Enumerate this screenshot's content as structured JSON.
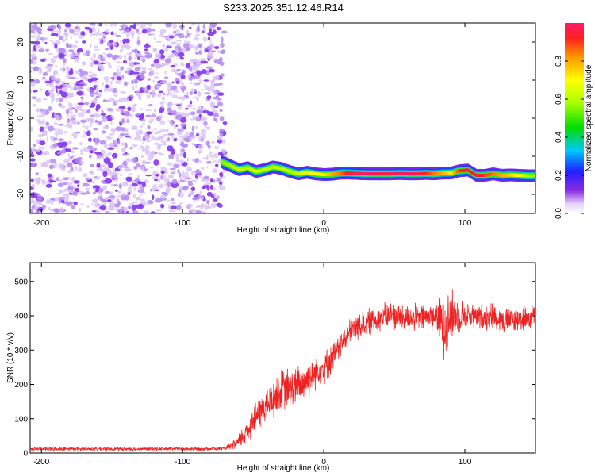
{
  "title": "S233.2025.351.12.46.R14",
  "colors": {
    "snr_line": "#ee2222",
    "axis": "#000000",
    "noise": "#8a3cf0"
  },
  "chart_data": [
    {
      "type": "heatmap",
      "title": "S233.2025.351.12.46.R14",
      "xlabel": "Height of straight line (km)",
      "ylabel": "Frequency (Hz)",
      "xlim": [
        -208,
        150
      ],
      "ylim": [
        -25,
        25
      ],
      "xticks": [
        -200,
        -100,
        0,
        100
      ],
      "yticks": [
        -20,
        -10,
        0,
        10,
        20
      ],
      "colorbar": {
        "label": "Normalized spectral amplitude",
        "range": [
          0.0,
          1.0
        ],
        "ticks": [
          "0.0",
          "0.2",
          "0.4",
          "0.6",
          "0.8"
        ],
        "tick_values": [
          0.0,
          0.2,
          0.4,
          0.6,
          0.8
        ]
      },
      "noise_region": {
        "x_from": -208,
        "x_to": -72,
        "freq_from": -25,
        "freq_to": 25,
        "amplitude": 0.1
      },
      "signal_ridge": {
        "x": [
          -72,
          -66,
          -60,
          -54,
          -48,
          -42,
          -36,
          -30,
          -24,
          -18,
          -12,
          -6,
          0,
          6,
          12,
          18,
          24,
          30,
          36,
          42,
          48,
          54,
          60,
          66,
          72,
          78,
          84,
          90,
          96,
          102,
          108,
          114,
          120,
          126,
          132,
          138,
          144,
          150
        ],
        "freq": [
          -11.5,
          -12.5,
          -13.5,
          -13.0,
          -14.0,
          -13.5,
          -12.8,
          -13.2,
          -14.0,
          -14.6,
          -14.2,
          -14.6,
          -14.8,
          -14.7,
          -14.4,
          -14.4,
          -14.5,
          -14.6,
          -14.6,
          -14.6,
          -14.6,
          -14.5,
          -14.6,
          -14.6,
          -14.5,
          -14.6,
          -14.4,
          -14.4,
          -13.8,
          -13.6,
          -15.0,
          -15.0,
          -14.6,
          -15.0,
          -14.9,
          -15.0,
          -15.1,
          -15.1
        ],
        "amplitude": [
          0.55,
          0.6,
          0.65,
          0.6,
          0.65,
          0.6,
          0.62,
          0.62,
          0.6,
          0.62,
          0.7,
          0.7,
          0.72,
          0.8,
          0.85,
          0.95,
          0.98,
          1.0,
          1.0,
          0.95,
          0.98,
          1.0,
          1.0,
          0.98,
          0.92,
          0.85,
          0.8,
          0.72,
          0.9,
          0.95,
          0.95,
          0.9,
          0.85,
          0.8,
          0.75,
          0.7,
          0.6,
          0.55
        ]
      }
    },
    {
      "type": "line",
      "xlabel": "Height of straight line (km)",
      "ylabel": "SNR (10 * v/v)",
      "xlim": [
        -208,
        150
      ],
      "ylim": [
        0,
        555
      ],
      "xticks": [
        -200,
        -100,
        0,
        100
      ],
      "yticks": [
        0,
        100,
        200,
        300,
        400,
        500
      ],
      "series": [
        {
          "name": "SNR",
          "x": [
            -208,
            -180,
            -150,
            -120,
            -90,
            -70,
            -62,
            -55,
            -50,
            -45,
            -40,
            -35,
            -30,
            -25,
            -20,
            -15,
            -10,
            -5,
            0,
            5,
            10,
            15,
            20,
            25,
            30,
            40,
            50,
            60,
            70,
            80,
            85,
            90,
            95,
            100,
            110,
            120,
            130,
            140,
            150
          ],
          "mean": [
            12,
            12,
            12,
            12,
            12,
            13,
            25,
            60,
            95,
            120,
            140,
            160,
            180,
            185,
            190,
            205,
            220,
            240,
            250,
            270,
            300,
            330,
            360,
            370,
            380,
            395,
            400,
            395,
            395,
            400,
            380,
            395,
            400,
            405,
            395,
            400,
            385,
            390,
            400
          ],
          "noise": [
            6,
            6,
            6,
            6,
            6,
            6,
            20,
            45,
            55,
            55,
            60,
            70,
            75,
            75,
            70,
            70,
            65,
            55,
            55,
            50,
            45,
            45,
            45,
            45,
            45,
            45,
            50,
            45,
            45,
            50,
            120,
            110,
            55,
            50,
            45,
            45,
            45,
            45,
            45
          ]
        }
      ]
    }
  ]
}
